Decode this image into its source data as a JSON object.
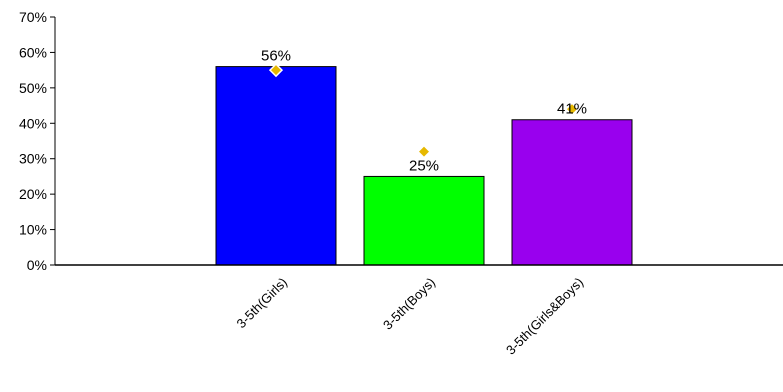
{
  "chart_data": {
    "type": "bar",
    "categories": [
      "3-5th(Girls)",
      "3-5th(Boys)",
      "3-5th(Girls&Boys)"
    ],
    "values": [
      56,
      25,
      41
    ],
    "value_labels": [
      "56%",
      "25%",
      "41%"
    ],
    "marker_values": [
      55,
      32,
      44
    ],
    "bar_colors": [
      "#0000FF",
      "#00FF00",
      "#9900EE"
    ],
    "marker_color": "#E6B800",
    "ylim": [
      0,
      70
    ],
    "yticks": [
      0,
      10,
      20,
      30,
      40,
      50,
      60,
      70
    ],
    "ytick_labels": [
      "0%",
      "10%",
      "20%",
      "30%",
      "40%",
      "50%",
      "60%",
      "70%"
    ],
    "title": "",
    "xlabel": "",
    "ylabel": "",
    "grid": false,
    "legend": "none"
  }
}
